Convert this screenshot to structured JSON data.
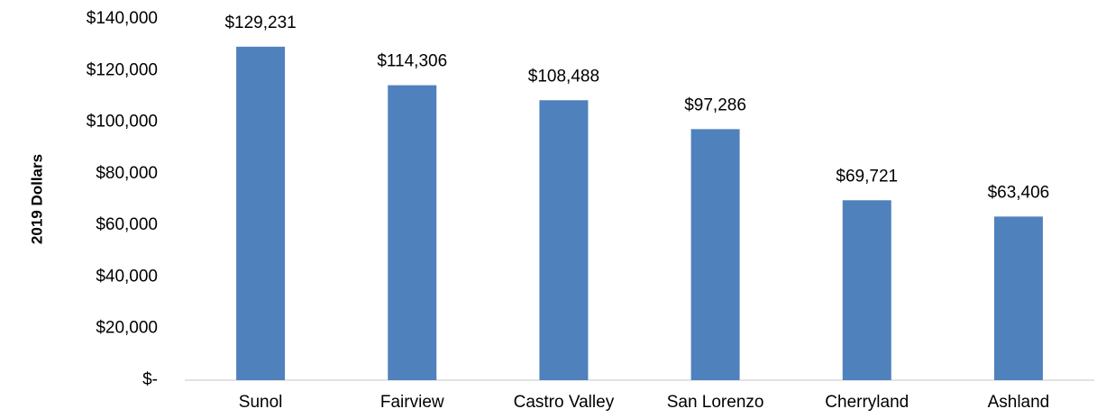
{
  "chart_data": {
    "type": "bar",
    "y_label": "2019 Dollars",
    "categories": [
      "Sunol",
      "Fairview",
      "Castro Valley",
      "San Lorenzo",
      "Cherryland",
      "Ashland"
    ],
    "values": [
      129231,
      114306,
      108488,
      97286,
      69721,
      63406
    ],
    "value_labels": [
      "$129,231",
      "$114,306",
      "$108,488",
      "$97,286",
      "$69,721",
      "$63,406"
    ],
    "color": "#4f81bd",
    "ylim": [
      0,
      140000
    ],
    "yticks": [
      {
        "value": 0,
        "label": "$-"
      },
      {
        "value": 20000,
        "label": "$20,000"
      },
      {
        "value": 40000,
        "label": "$40,000"
      },
      {
        "value": 60000,
        "label": "$60,000"
      },
      {
        "value": 80000,
        "label": "$80,000"
      },
      {
        "value": 100000,
        "label": "$100,000"
      },
      {
        "value": 120000,
        "label": "$120,000"
      },
      {
        "value": 140000,
        "label": "$140,000"
      }
    ],
    "grid": false
  }
}
